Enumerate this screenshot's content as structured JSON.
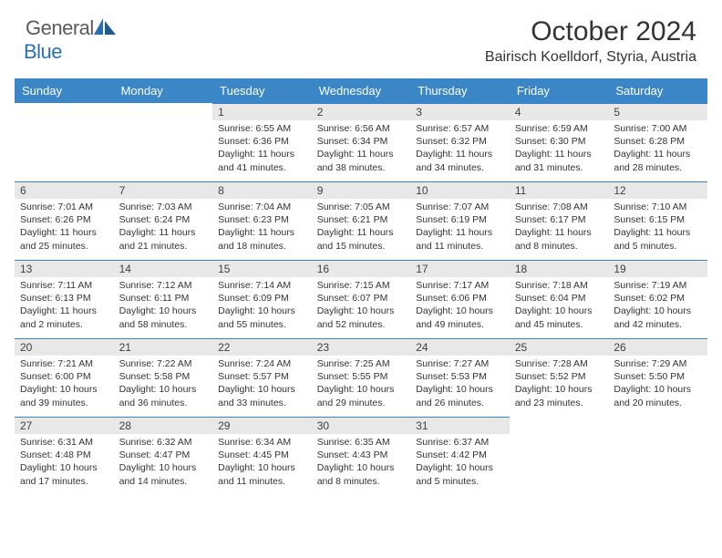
{
  "logo": {
    "text1": "General",
    "text2": "Blue"
  },
  "title": "October 2024",
  "location": "Bairisch Koelldorf, Styria, Austria",
  "colors": {
    "header_bg": "#3b86c7",
    "header_text": "#ffffff",
    "daynum_bg": "#e8e8e8",
    "daynum_border": "#3b86c7",
    "body_text": "#333333",
    "logo_general": "#5a5a5a",
    "logo_blue": "#2a6fb5"
  },
  "days_of_week": [
    "Sunday",
    "Monday",
    "Tuesday",
    "Wednesday",
    "Thursday",
    "Friday",
    "Saturday"
  ],
  "first_weekday_index": 2,
  "days": [
    {
      "n": 1,
      "sr": "6:55 AM",
      "ss": "6:36 PM",
      "dl": "11 hours and 41 minutes."
    },
    {
      "n": 2,
      "sr": "6:56 AM",
      "ss": "6:34 PM",
      "dl": "11 hours and 38 minutes."
    },
    {
      "n": 3,
      "sr": "6:57 AM",
      "ss": "6:32 PM",
      "dl": "11 hours and 34 minutes."
    },
    {
      "n": 4,
      "sr": "6:59 AM",
      "ss": "6:30 PM",
      "dl": "11 hours and 31 minutes."
    },
    {
      "n": 5,
      "sr": "7:00 AM",
      "ss": "6:28 PM",
      "dl": "11 hours and 28 minutes."
    },
    {
      "n": 6,
      "sr": "7:01 AM",
      "ss": "6:26 PM",
      "dl": "11 hours and 25 minutes."
    },
    {
      "n": 7,
      "sr": "7:03 AM",
      "ss": "6:24 PM",
      "dl": "11 hours and 21 minutes."
    },
    {
      "n": 8,
      "sr": "7:04 AM",
      "ss": "6:23 PM",
      "dl": "11 hours and 18 minutes."
    },
    {
      "n": 9,
      "sr": "7:05 AM",
      "ss": "6:21 PM",
      "dl": "11 hours and 15 minutes."
    },
    {
      "n": 10,
      "sr": "7:07 AM",
      "ss": "6:19 PM",
      "dl": "11 hours and 11 minutes."
    },
    {
      "n": 11,
      "sr": "7:08 AM",
      "ss": "6:17 PM",
      "dl": "11 hours and 8 minutes."
    },
    {
      "n": 12,
      "sr": "7:10 AM",
      "ss": "6:15 PM",
      "dl": "11 hours and 5 minutes."
    },
    {
      "n": 13,
      "sr": "7:11 AM",
      "ss": "6:13 PM",
      "dl": "11 hours and 2 minutes."
    },
    {
      "n": 14,
      "sr": "7:12 AM",
      "ss": "6:11 PM",
      "dl": "10 hours and 58 minutes."
    },
    {
      "n": 15,
      "sr": "7:14 AM",
      "ss": "6:09 PM",
      "dl": "10 hours and 55 minutes."
    },
    {
      "n": 16,
      "sr": "7:15 AM",
      "ss": "6:07 PM",
      "dl": "10 hours and 52 minutes."
    },
    {
      "n": 17,
      "sr": "7:17 AM",
      "ss": "6:06 PM",
      "dl": "10 hours and 49 minutes."
    },
    {
      "n": 18,
      "sr": "7:18 AM",
      "ss": "6:04 PM",
      "dl": "10 hours and 45 minutes."
    },
    {
      "n": 19,
      "sr": "7:19 AM",
      "ss": "6:02 PM",
      "dl": "10 hours and 42 minutes."
    },
    {
      "n": 20,
      "sr": "7:21 AM",
      "ss": "6:00 PM",
      "dl": "10 hours and 39 minutes."
    },
    {
      "n": 21,
      "sr": "7:22 AM",
      "ss": "5:58 PM",
      "dl": "10 hours and 36 minutes."
    },
    {
      "n": 22,
      "sr": "7:24 AM",
      "ss": "5:57 PM",
      "dl": "10 hours and 33 minutes."
    },
    {
      "n": 23,
      "sr": "7:25 AM",
      "ss": "5:55 PM",
      "dl": "10 hours and 29 minutes."
    },
    {
      "n": 24,
      "sr": "7:27 AM",
      "ss": "5:53 PM",
      "dl": "10 hours and 26 minutes."
    },
    {
      "n": 25,
      "sr": "7:28 AM",
      "ss": "5:52 PM",
      "dl": "10 hours and 23 minutes."
    },
    {
      "n": 26,
      "sr": "7:29 AM",
      "ss": "5:50 PM",
      "dl": "10 hours and 20 minutes."
    },
    {
      "n": 27,
      "sr": "6:31 AM",
      "ss": "4:48 PM",
      "dl": "10 hours and 17 minutes."
    },
    {
      "n": 28,
      "sr": "6:32 AM",
      "ss": "4:47 PM",
      "dl": "10 hours and 14 minutes."
    },
    {
      "n": 29,
      "sr": "6:34 AM",
      "ss": "4:45 PM",
      "dl": "10 hours and 11 minutes."
    },
    {
      "n": 30,
      "sr": "6:35 AM",
      "ss": "4:43 PM",
      "dl": "10 hours and 8 minutes."
    },
    {
      "n": 31,
      "sr": "6:37 AM",
      "ss": "4:42 PM",
      "dl": "10 hours and 5 minutes."
    }
  ],
  "labels": {
    "sunrise": "Sunrise:",
    "sunset": "Sunset:",
    "daylight": "Daylight:"
  }
}
